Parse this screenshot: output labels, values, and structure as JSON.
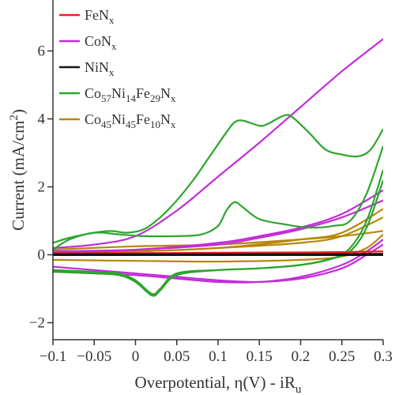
{
  "chart_data": {
    "type": "line",
    "xlabel": "Overpotential, η(V) - iR",
    "xlabel_sub": "u",
    "ylabel": "Current (mA/cm",
    "ylabel_sup": "2",
    "ylabel_end": ")",
    "xlim": [
      -0.1,
      0.3
    ],
    "ylim": [
      -2.5,
      7.5
    ],
    "x_ticks": [
      -0.1,
      -0.05,
      0,
      0.05,
      0.1,
      0.15,
      0.2,
      0.25,
      0.3
    ],
    "x_tick_labels": [
      "−0.1",
      "−0.05",
      "0",
      "0.05",
      "0.1",
      "0.15",
      "0.2",
      "0.25",
      "0.3"
    ],
    "y_ticks": [
      -2,
      0,
      2,
      4,
      6
    ],
    "y_tick_labels": [
      "−2",
      "0",
      "2",
      "4",
      "6"
    ],
    "grid": false,
    "legend_position": "top-left",
    "series": [
      {
        "name": "FeNx",
        "name_main": "FeN",
        "name_sub": "x",
        "color": "#e8231f",
        "loops": [
          [
            [
              -0.1,
              0.05
            ],
            [
              0.0,
              0.05
            ],
            [
              0.1,
              0.06
            ],
            [
              0.2,
              0.07
            ],
            [
              0.25,
              0.08
            ],
            [
              0.3,
              0.1
            ]
          ],
          [
            [
              0.3,
              0.1
            ],
            [
              0.2,
              0.06
            ],
            [
              0.1,
              0.05
            ],
            [
              0.0,
              0.04
            ],
            [
              -0.1,
              0.04
            ]
          ]
        ]
      },
      {
        "name": "CoNx",
        "name_main": "CoN",
        "name_sub": "x",
        "color": "#c42bdb",
        "loops": [
          [
            [
              -0.1,
              0.2
            ],
            [
              -0.05,
              0.3
            ],
            [
              0.0,
              0.55
            ],
            [
              0.05,
              1.3
            ],
            [
              0.1,
              2.3
            ],
            [
              0.15,
              3.3
            ],
            [
              0.2,
              4.35
            ],
            [
              0.25,
              5.4
            ],
            [
              0.3,
              6.35
            ]
          ],
          [
            [
              -0.1,
              -0.35
            ],
            [
              -0.05,
              -0.45
            ],
            [
              0.0,
              -0.55
            ],
            [
              0.05,
              -0.65
            ],
            [
              0.1,
              -0.75
            ],
            [
              0.15,
              -0.8
            ],
            [
              0.2,
              -0.7
            ],
            [
              0.25,
              -0.4
            ],
            [
              0.28,
              0.0
            ],
            [
              0.3,
              0.3
            ]
          ],
          [
            [
              -0.1,
              0.05
            ],
            [
              0.0,
              0.15
            ],
            [
              0.1,
              0.35
            ],
            [
              0.15,
              0.55
            ],
            [
              0.2,
              0.8
            ],
            [
              0.25,
              1.2
            ],
            [
              0.3,
              1.9
            ]
          ],
          [
            [
              0.3,
              1.6
            ],
            [
              0.25,
              1.1
            ],
            [
              0.2,
              0.75
            ],
            [
              0.15,
              0.5
            ],
            [
              0.1,
              0.3
            ],
            [
              0.0,
              0.15
            ],
            [
              -0.1,
              0.1
            ]
          ],
          [
            [
              -0.1,
              -0.45
            ],
            [
              0.0,
              -0.6
            ],
            [
              0.05,
              -0.7
            ],
            [
              0.1,
              -0.8
            ],
            [
              0.15,
              -0.8
            ],
            [
              0.2,
              -0.65
            ],
            [
              0.25,
              -0.3
            ],
            [
              0.28,
              0.1
            ],
            [
              0.3,
              0.45
            ]
          ]
        ]
      },
      {
        "name": "NiNx",
        "name_main": "NiN",
        "name_sub": "x",
        "color": "#151515",
        "loops": [
          [
            [
              -0.1,
              0.0
            ],
            [
              0.0,
              0.0
            ],
            [
              0.1,
              0.0
            ],
            [
              0.2,
              0.0
            ],
            [
              0.3,
              0.0
            ]
          ],
          [
            [
              0.3,
              0.02
            ],
            [
              0.2,
              0.01
            ],
            [
              0.1,
              0.01
            ],
            [
              0.0,
              0.01
            ],
            [
              -0.1,
              0.01
            ]
          ]
        ]
      },
      {
        "name": "Co57Ni14Fe29Nx",
        "name_parts": [
          [
            "Co",
            ""
          ],
          [
            "57",
            "sub"
          ],
          [
            "Ni",
            ""
          ],
          [
            "14",
            "sub"
          ],
          [
            "Fe",
            ""
          ],
          [
            "29",
            "sub"
          ],
          [
            "N",
            ""
          ],
          [
            "x",
            "sub"
          ]
        ],
        "color": "#2ca52c",
        "loops": [
          [
            [
              -0.1,
              0.35
            ],
            [
              -0.08,
              0.5
            ],
            [
              -0.05,
              0.65
            ],
            [
              -0.03,
              0.7
            ],
            [
              -0.01,
              0.65
            ],
            [
              0.01,
              0.75
            ],
            [
              0.03,
              1.1
            ],
            [
              0.05,
              1.6
            ],
            [
              0.07,
              2.2
            ],
            [
              0.09,
              2.9
            ],
            [
              0.11,
              3.6
            ],
            [
              0.12,
              3.9
            ],
            [
              0.13,
              3.95
            ],
            [
              0.15,
              3.8
            ],
            [
              0.16,
              3.85
            ],
            [
              0.18,
              4.1
            ],
            [
              0.19,
              4.05
            ],
            [
              0.21,
              3.6
            ],
            [
              0.23,
              3.1
            ],
            [
              0.25,
              2.95
            ],
            [
              0.27,
              2.9
            ],
            [
              0.285,
              3.1
            ],
            [
              0.3,
              3.7
            ]
          ],
          [
            [
              -0.1,
              0.15
            ],
            [
              -0.08,
              0.45
            ],
            [
              -0.05,
              0.65
            ],
            [
              -0.02,
              0.6
            ],
            [
              0.01,
              0.55
            ],
            [
              0.05,
              0.55
            ],
            [
              0.08,
              0.6
            ],
            [
              0.1,
              0.85
            ],
            [
              0.11,
              1.3
            ],
            [
              0.12,
              1.55
            ],
            [
              0.13,
              1.4
            ],
            [
              0.15,
              1.05
            ],
            [
              0.18,
              0.9
            ],
            [
              0.21,
              0.8
            ],
            [
              0.24,
              0.85
            ],
            [
              0.26,
              1.0
            ],
            [
              0.28,
              1.8
            ],
            [
              0.3,
              3.2
            ]
          ],
          [
            [
              -0.1,
              -0.5
            ],
            [
              -0.05,
              -0.55
            ],
            [
              -0.02,
              -0.6
            ],
            [
              0.0,
              -0.8
            ],
            [
              0.02,
              -1.2
            ],
            [
              0.03,
              -1.05
            ],
            [
              0.05,
              -0.6
            ],
            [
              0.1,
              -0.45
            ],
            [
              0.15,
              -0.4
            ],
            [
              0.2,
              -0.3
            ],
            [
              0.24,
              -0.1
            ],
            [
              0.26,
              0.2
            ],
            [
              0.28,
              1.0
            ],
            [
              0.3,
              2.5
            ]
          ],
          [
            [
              -0.1,
              -0.45
            ],
            [
              -0.05,
              -0.5
            ],
            [
              -0.02,
              -0.55
            ],
            [
              0.0,
              -0.75
            ],
            [
              0.02,
              -1.15
            ],
            [
              0.03,
              -1.0
            ],
            [
              0.05,
              -0.55
            ],
            [
              0.1,
              -0.45
            ],
            [
              0.15,
              -0.4
            ],
            [
              0.2,
              -0.3
            ],
            [
              0.24,
              -0.1
            ],
            [
              0.26,
              0.1
            ],
            [
              0.28,
              0.8
            ],
            [
              0.3,
              2.2
            ]
          ]
        ]
      },
      {
        "name": "Co45Ni45Fe10Nx",
        "name_parts": [
          [
            "Co",
            ""
          ],
          [
            "45",
            "sub"
          ],
          [
            "Ni",
            ""
          ],
          [
            "45",
            "sub"
          ],
          [
            "Fe",
            ""
          ],
          [
            "10",
            "sub"
          ],
          [
            "N",
            ""
          ],
          [
            "x",
            "sub"
          ]
        ],
        "color": "#b8860b",
        "loops": [
          [
            [
              -0.1,
              0.05
            ],
            [
              0.0,
              0.1
            ],
            [
              0.1,
              0.2
            ],
            [
              0.2,
              0.45
            ],
            [
              0.25,
              0.65
            ],
            [
              0.3,
              1.35
            ]
          ],
          [
            [
              0.3,
              1.1
            ],
            [
              0.25,
              0.55
            ],
            [
              0.2,
              0.35
            ],
            [
              0.1,
              0.2
            ],
            [
              0.0,
              0.1
            ],
            [
              -0.1,
              0.1
            ]
          ],
          [
            [
              -0.1,
              -0.15
            ],
            [
              0.0,
              -0.18
            ],
            [
              0.1,
              -0.2
            ],
            [
              0.2,
              -0.15
            ],
            [
              0.25,
              -0.05
            ],
            [
              0.28,
              0.2
            ],
            [
              0.3,
              0.6
            ]
          ],
          [
            [
              -0.1,
              0.15
            ],
            [
              0.0,
              0.25
            ],
            [
              0.1,
              0.3
            ],
            [
              0.2,
              0.45
            ],
            [
              0.25,
              0.55
            ],
            [
              0.3,
              0.7
            ]
          ]
        ]
      }
    ]
  }
}
